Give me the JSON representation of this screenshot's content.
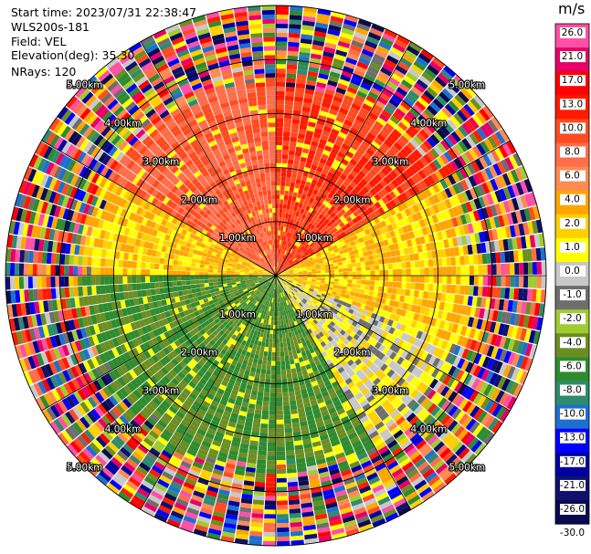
{
  "header": {
    "start_time": "Start time: 2023/07/31 22:38:47",
    "instrument": "WLS200s-181",
    "field": "Field: VEL",
    "elevation": "Elevation(deg): 35.30",
    "nrays": "NRays: 120"
  },
  "colorbar": {
    "unit": "m/s",
    "ticks": [
      "26.0",
      "21.0",
      "17.0",
      "13.0",
      "10.0",
      "8.0",
      "6.0",
      "4.0",
      "2.0",
      "1.0",
      "0.0",
      "-1.0",
      "-2.0",
      "-4.0",
      "-6.0",
      "-8.0",
      "-10.0",
      "-13.0",
      "-17.0",
      "-21.0",
      "-26.0",
      "-30.0"
    ],
    "colors": [
      "#ff4fa6",
      "#e60067",
      "#ff0000",
      "#ff1a00",
      "#ff4b1f",
      "#ff6d4a",
      "#ff8a52",
      "#ffa500",
      "#ffd000",
      "#ffff00",
      "#c8c8c8",
      "#6e6e6e",
      "#a0cc2f",
      "#6b8e23",
      "#2e8b2e",
      "#2e8b6e",
      "#1e6fd0",
      "#0000ff",
      "#0000a0",
      "#10106e",
      "#0a0a50"
    ]
  },
  "chart_data": {
    "type": "heatmap",
    "title": "",
    "field": "VEL",
    "unit": "m/s",
    "projection": "polar PPI (plan position indicator)",
    "nrays": 120,
    "range_rings_km": [
      1.0,
      2.0,
      3.0,
      4.0,
      5.0
    ],
    "range_ring_labels": [
      "1.00km",
      "2.00km",
      "3.00km",
      "4.00km",
      "5.00km"
    ],
    "max_range_km": 5.0,
    "colorscale_min": -30.0,
    "colorscale_max": 26.0,
    "pattern_summary": "Near field (< ~3 km): positive velocities (+2 to +10 m/s, yellow/orange/salmon) to the north and north-east; negative velocities (-4 to -8 m/s, green, blue patches) to the south and south-west; near-zero grey in between. Beyond ~3.5 km the field is noise with all colours.",
    "near_field_sectors": [
      {
        "azimuth_from_deg": 300,
        "azimuth_to_deg": 360,
        "velocity_ms": 8.0
      },
      {
        "azimuth_from_deg": 0,
        "azimuth_to_deg": 60,
        "velocity_ms": 10.0
      },
      {
        "azimuth_from_deg": 60,
        "azimuth_to_deg": 110,
        "velocity_ms": 2.0
      },
      {
        "azimuth_from_deg": 110,
        "azimuth_to_deg": 150,
        "velocity_ms": 0.0
      },
      {
        "azimuth_from_deg": 150,
        "azimuth_to_deg": 270,
        "velocity_ms": -6.0
      },
      {
        "azimuth_from_deg": 270,
        "azimuth_to_deg": 300,
        "velocity_ms": 2.0
      }
    ]
  }
}
